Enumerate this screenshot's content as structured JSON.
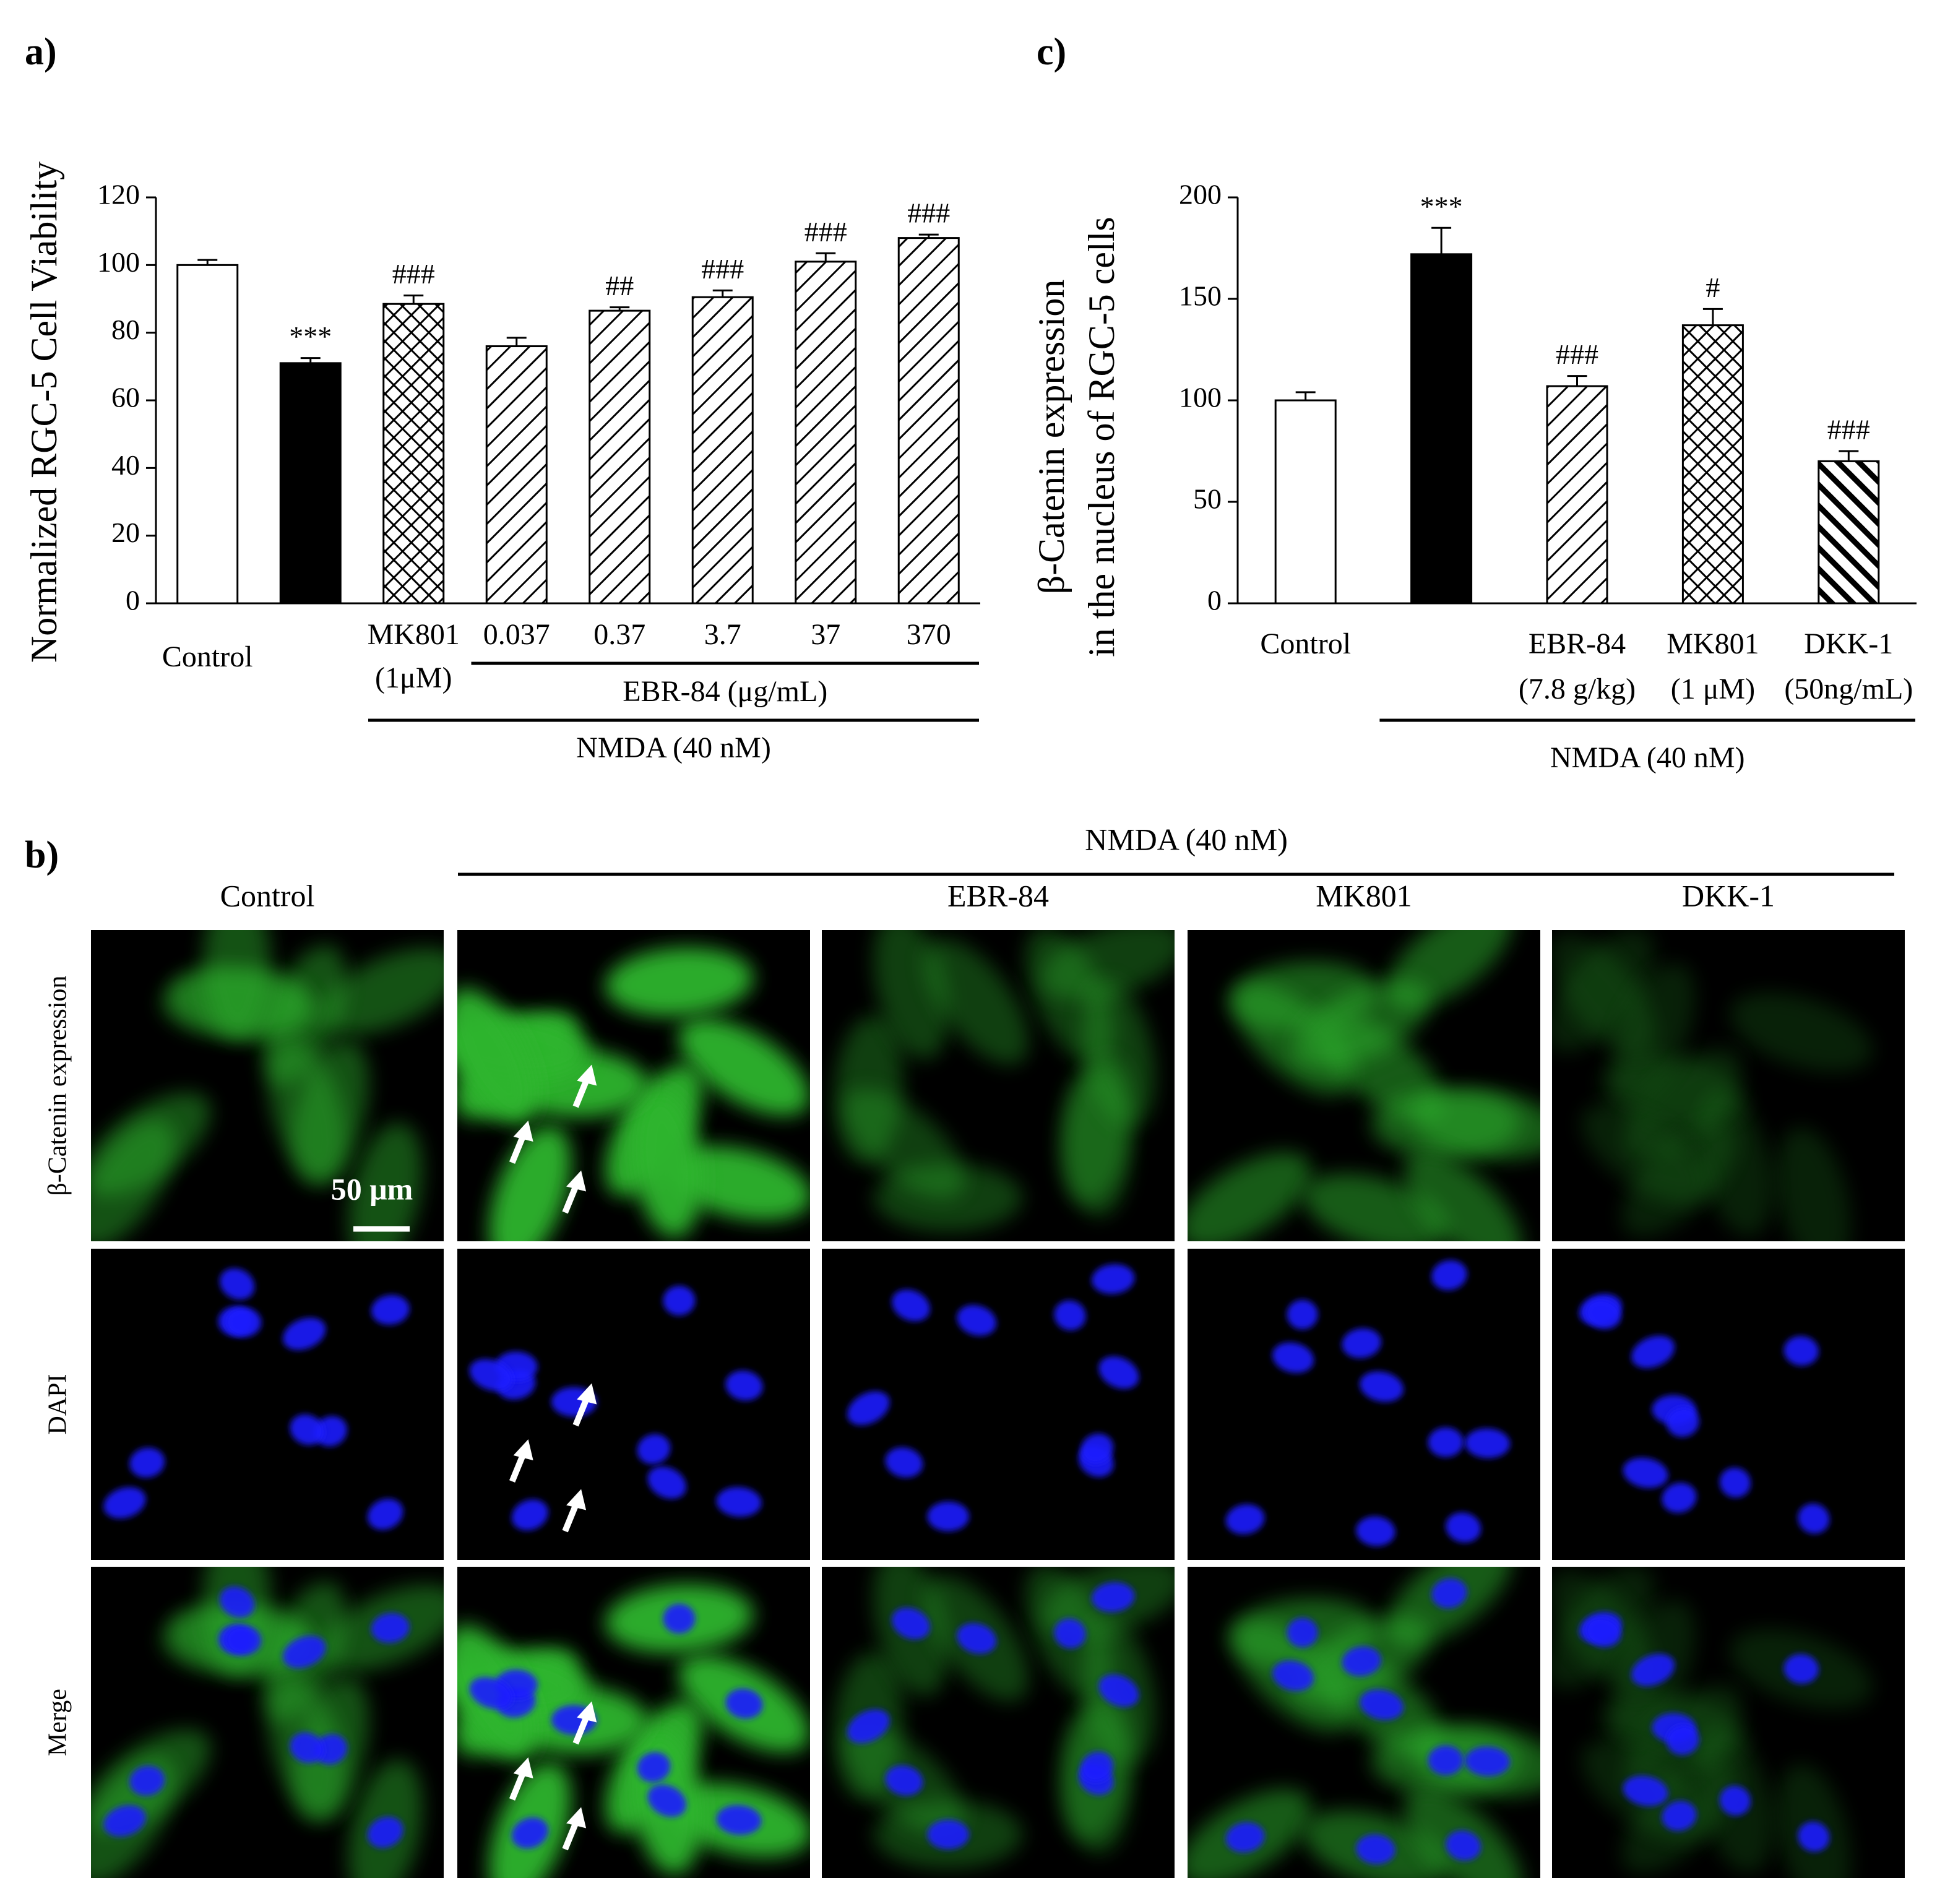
{
  "chart_data": [
    {
      "type": "bar",
      "panel": "a)",
      "y_label": "Normalized RGC-5 Cell Viability",
      "categories": [
        [
          "Control"
        ],
        null,
        [
          "MK801",
          "(1μM)"
        ],
        [
          "0.037"
        ],
        [
          "0.37"
        ],
        [
          "3.7"
        ],
        [
          "37"
        ],
        [
          "370"
        ]
      ],
      "values": [
        100,
        71,
        88.5,
        76,
        86.5,
        90.5,
        101,
        108
      ],
      "errors": [
        1.5,
        1.5,
        2.5,
        2.5,
        1,
        2,
        2.5,
        1
      ],
      "annotations": [
        null,
        "***",
        "###",
        null,
        "##",
        "###",
        "###",
        "###"
      ],
      "patterns": [
        "open",
        "solid",
        "crosshatch",
        "hatch",
        "hatch",
        "hatch",
        "hatch",
        "hatch"
      ],
      "groups": [
        {
          "label": "EBR-84 (μg/mL)",
          "from": 3,
          "to": 7
        },
        {
          "label": "NMDA (40 nM)",
          "from": 2,
          "to": 7
        }
      ],
      "ylim": [
        0,
        120
      ],
      "yticks": [
        0,
        20,
        40,
        60,
        80,
        100,
        120
      ]
    },
    {
      "type": "bar",
      "panel": "c)",
      "y_label": [
        "β-Catenin expression",
        "in the nucleus of RGC-5 cells"
      ],
      "categories": [
        [
          "Control"
        ],
        null,
        [
          "EBR-84",
          "(7.8 g/kg)"
        ],
        [
          "MK801",
          "(1 μM)"
        ],
        [
          "DKK-1",
          "(50ng/mL)"
        ]
      ],
      "values": [
        100,
        172,
        107,
        137,
        70
      ],
      "errors": [
        4,
        13,
        5,
        8,
        5
      ],
      "annotations": [
        null,
        "***",
        "###",
        "#",
        "###"
      ],
      "patterns": [
        "open",
        "solid",
        "hatch",
        "crosshatch",
        "bold-hatch"
      ],
      "groups": [
        {
          "label": "NMDA (40 nM)",
          "from": 1,
          "to": 4
        }
      ],
      "ylim": [
        0,
        200
      ],
      "yticks": [
        0,
        50,
        100,
        150,
        200
      ]
    }
  ],
  "panel_b": {
    "label": "b)",
    "group": "NMDA (40 nM)",
    "columns": [
      "Control",
      null,
      "EBR-84",
      "MK801",
      "DKK-1"
    ],
    "rows": [
      "β-Catenin expression",
      "DAPI",
      "Merge"
    ],
    "scale_bar": "50 μm"
  }
}
